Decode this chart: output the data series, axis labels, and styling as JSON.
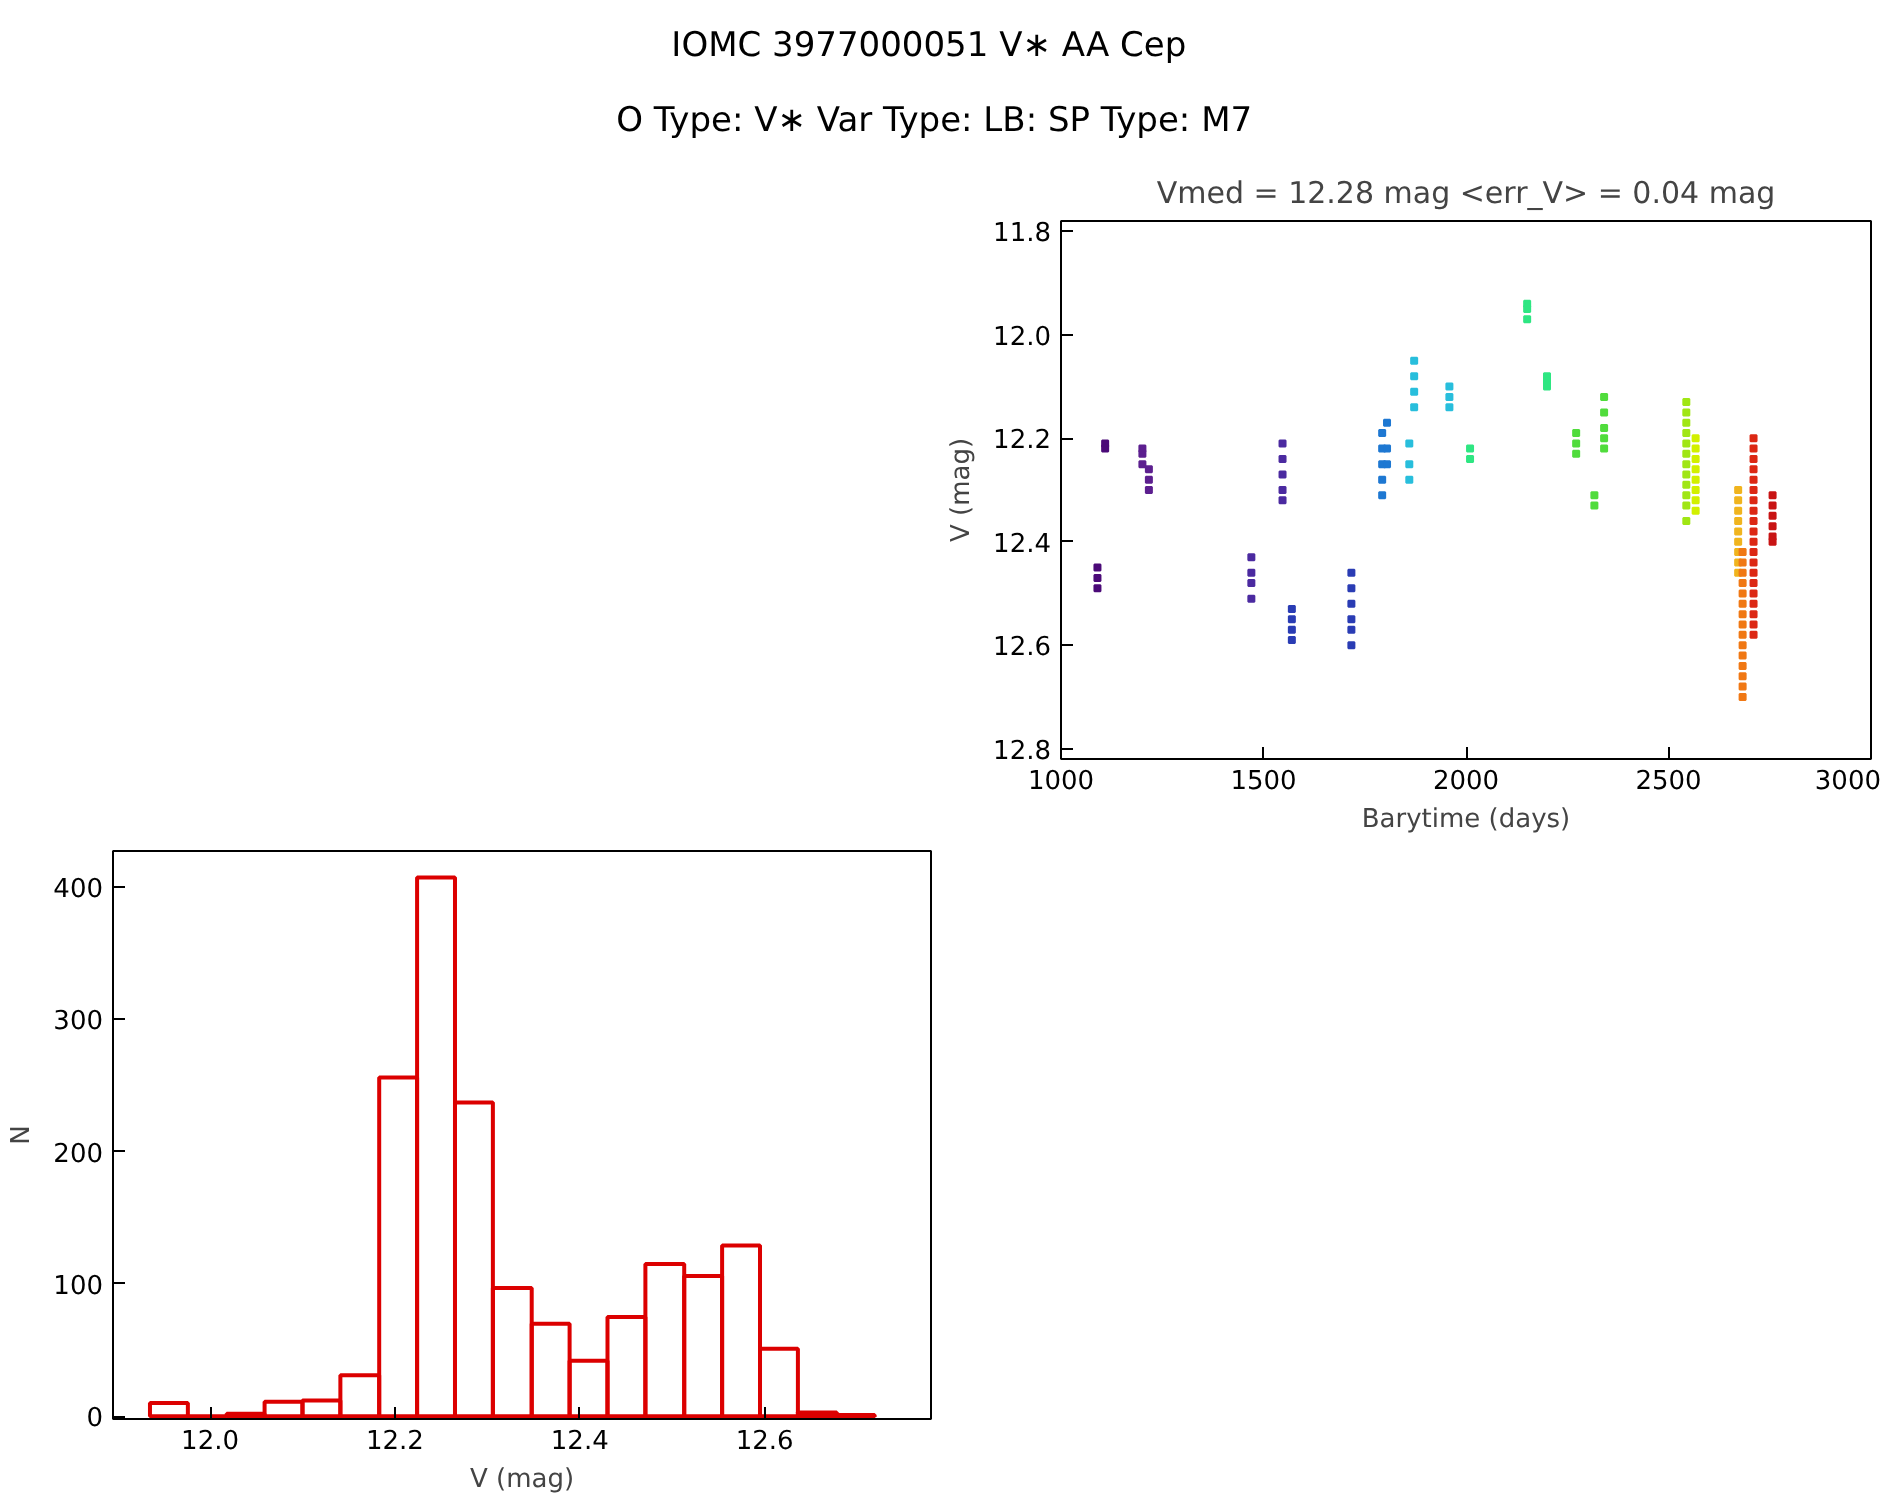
{
  "chart_data": [
    {
      "type": "other",
      "title": "IOMC 3977000051    V∗ AA Cep",
      "subtitle": "O Type: V∗  Var Type: LB:  SP Type: M7"
    },
    {
      "type": "scatter",
      "title": "Vmed = 12.28 mag <err_V> = 0.04 mag",
      "xlabel": "Barytime (days)",
      "ylabel": "V (mag)",
      "xlim": [
        1000,
        3000
      ],
      "ylim": [
        12.82,
        11.78
      ],
      "xticks": [
        1000,
        1500,
        2000,
        2500,
        3000
      ],
      "yticks": [
        11.8,
        {
          "value": 12.0,
          "label": "12.0"
        },
        12.2,
        12.4,
        12.6,
        12.8
      ],
      "grid": false,
      "marker": "square",
      "series": [
        {
          "color": "#4b0a78",
          "x": [
            1109,
            1109,
            1090,
            1090,
            1090
          ],
          "values": [
            12.21,
            12.22,
            12.45,
            12.47,
            12.49
          ]
        },
        {
          "color": "#5c1f8f",
          "x": [
            1201,
            1201,
            1201,
            1217,
            1217,
            1217
          ],
          "values": [
            12.22,
            12.23,
            12.25,
            12.26,
            12.28,
            12.3
          ]
        },
        {
          "color": "#4b2aa0",
          "x": [
            1470,
            1470,
            1470,
            1470,
            1547,
            1547,
            1547,
            1547,
            1547
          ],
          "values": [
            12.43,
            12.46,
            12.48,
            12.51,
            12.21,
            12.24,
            12.27,
            12.3,
            12.32
          ]
        },
        {
          "color": "#2a3cb4",
          "x": [
            1570,
            1570,
            1570,
            1570,
            1717,
            1717,
            1717,
            1717,
            1717,
            1717
          ],
          "values": [
            12.53,
            12.55,
            12.57,
            12.59,
            12.46,
            12.49,
            12.52,
            12.55,
            12.57,
            12.6
          ]
        },
        {
          "color": "#1e78d2",
          "x": [
            1793,
            1793,
            1793,
            1793,
            1793,
            1805,
            1805,
            1805
          ],
          "values": [
            12.19,
            12.22,
            12.25,
            12.28,
            12.31,
            12.17,
            12.22,
            12.25
          ]
        },
        {
          "color": "#28bedc",
          "x": [
            1860,
            1860,
            1860,
            1872,
            1872,
            1872,
            1872,
            1959,
            1959,
            1959
          ],
          "values": [
            12.21,
            12.25,
            12.28,
            12.05,
            12.08,
            12.11,
            12.14,
            12.1,
            12.12,
            12.14
          ]
        },
        {
          "color": "#2ee682",
          "x": [
            2010,
            2010,
            2151,
            2151,
            2151,
            2200,
            2200,
            2200
          ],
          "values": [
            12.22,
            12.24,
            11.94,
            11.95,
            11.97,
            12.08,
            12.09,
            12.1
          ]
        },
        {
          "color": "#50dc3c",
          "x": [
            2272,
            2272,
            2272,
            2317,
            2317,
            2341,
            2341,
            2341,
            2341,
            2341
          ],
          "values": [
            12.19,
            12.21,
            12.23,
            12.31,
            12.33,
            12.12,
            12.15,
            12.18,
            12.2,
            12.22
          ]
        },
        {
          "color": "#a0e614",
          "x": [
            2544,
            2544,
            2544,
            2544,
            2544,
            2544,
            2544,
            2544,
            2544,
            2544,
            2544,
            2544
          ],
          "values": [
            12.13,
            12.15,
            12.17,
            12.19,
            12.21,
            12.23,
            12.25,
            12.27,
            12.29,
            12.31,
            12.33,
            12.36
          ]
        },
        {
          "color": "#d2f000",
          "x": [
            2567,
            2567,
            2567,
            2567,
            2567,
            2567,
            2567,
            2567
          ],
          "values": [
            12.2,
            12.22,
            12.24,
            12.26,
            12.28,
            12.3,
            12.32,
            12.34
          ]
        },
        {
          "color": "#f0b41e",
          "x": [
            2672,
            2672,
            2672,
            2672,
            2672,
            2672,
            2672,
            2672,
            2672
          ],
          "values": [
            12.3,
            12.32,
            12.34,
            12.36,
            12.38,
            12.4,
            12.42,
            12.44,
            12.46
          ]
        },
        {
          "color": "#f07814",
          "x": [
            2683,
            2683,
            2683,
            2683,
            2683,
            2683,
            2683,
            2683,
            2683,
            2683,
            2683,
            2683,
            2683,
            2683,
            2683
          ],
          "values": [
            12.42,
            12.44,
            12.46,
            12.48,
            12.5,
            12.52,
            12.54,
            12.56,
            12.58,
            12.6,
            12.62,
            12.64,
            12.66,
            12.68,
            12.7
          ]
        },
        {
          "color": "#dc2814",
          "x": [
            2710,
            2710,
            2710,
            2710,
            2710,
            2710,
            2710,
            2710,
            2710,
            2710,
            2710,
            2710,
            2710,
            2710,
            2710,
            2710,
            2710,
            2710,
            2710,
            2710
          ],
          "values": [
            12.2,
            12.22,
            12.24,
            12.26,
            12.28,
            12.3,
            12.32,
            12.34,
            12.36,
            12.38,
            12.4,
            12.42,
            12.44,
            12.46,
            12.48,
            12.5,
            12.52,
            12.54,
            12.56,
            12.58
          ]
        },
        {
          "color": "#c81414",
          "x": [
            2757,
            2757,
            2757,
            2757,
            2757,
            2757
          ],
          "values": [
            12.31,
            12.33,
            12.35,
            12.37,
            12.39,
            12.4
          ]
        }
      ]
    },
    {
      "type": "histogram",
      "xlabel": "V (mag)",
      "ylabel": "N",
      "xlim": [
        11.895,
        12.78
      ],
      "ylim": [
        -2,
        427
      ],
      "xticks": [
        {
          "value": 12.0,
          "label": "12.0"
        },
        12.2,
        12.4,
        12.6
      ],
      "yticks": [
        0,
        100,
        200,
        300,
        400
      ],
      "grid": false,
      "color": "#dc0000",
      "bins": [
        11.935,
        11.976,
        12.018,
        12.059,
        12.1,
        12.141,
        12.183,
        12.224,
        12.265,
        12.306,
        12.348,
        12.389,
        12.43,
        12.471,
        12.513,
        12.554,
        12.595,
        12.636,
        12.678,
        12.719
      ],
      "values": [
        10,
        0,
        2,
        11,
        12,
        31,
        256,
        407,
        237,
        97,
        70,
        42,
        75,
        115,
        106,
        129,
        51,
        3,
        1
      ]
    }
  ]
}
